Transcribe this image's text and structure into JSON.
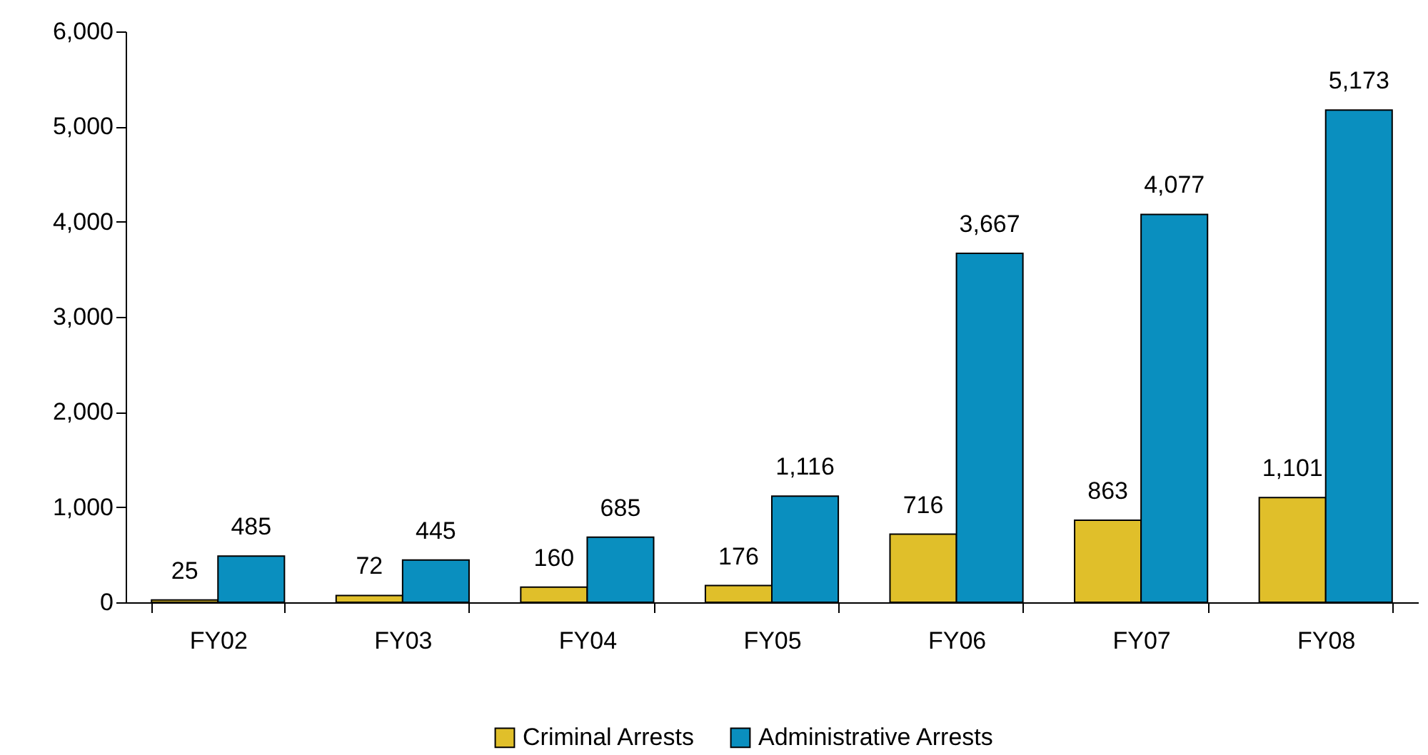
{
  "chart_data": {
    "type": "bar",
    "categories": [
      "FY02",
      "FY03",
      "FY04",
      "FY05",
      "FY06",
      "FY07",
      "FY08"
    ],
    "series": [
      {
        "name": "Criminal Arrests",
        "color": "#e0bf2a",
        "values": [
          25,
          72,
          160,
          176,
          716,
          863,
          1101
        ],
        "value_labels": [
          "25",
          "72",
          "160",
          "176",
          "716",
          "863",
          "1,101"
        ]
      },
      {
        "name": "Administrative Arrests",
        "color": "#0a8fbf",
        "values": [
          485,
          445,
          685,
          1116,
          3667,
          4077,
          5173
        ],
        "value_labels": [
          "485",
          "445",
          "685",
          "1,116",
          "3,667",
          "4,077",
          "5,173"
        ]
      }
    ],
    "ylim": [
      0,
      6000
    ],
    "yticks": [
      0,
      {
        "value": 1000,
        "label": "1,000"
      },
      {
        "value": 2000,
        "label": "2,000"
      },
      {
        "value": 3000,
        "label": "3,000"
      },
      {
        "value": 4000,
        "label": "4,000"
      },
      {
        "value": 5000,
        "label": "5,000"
      },
      {
        "value": 6000,
        "label": "6,000"
      }
    ],
    "legend": "bottom"
  }
}
